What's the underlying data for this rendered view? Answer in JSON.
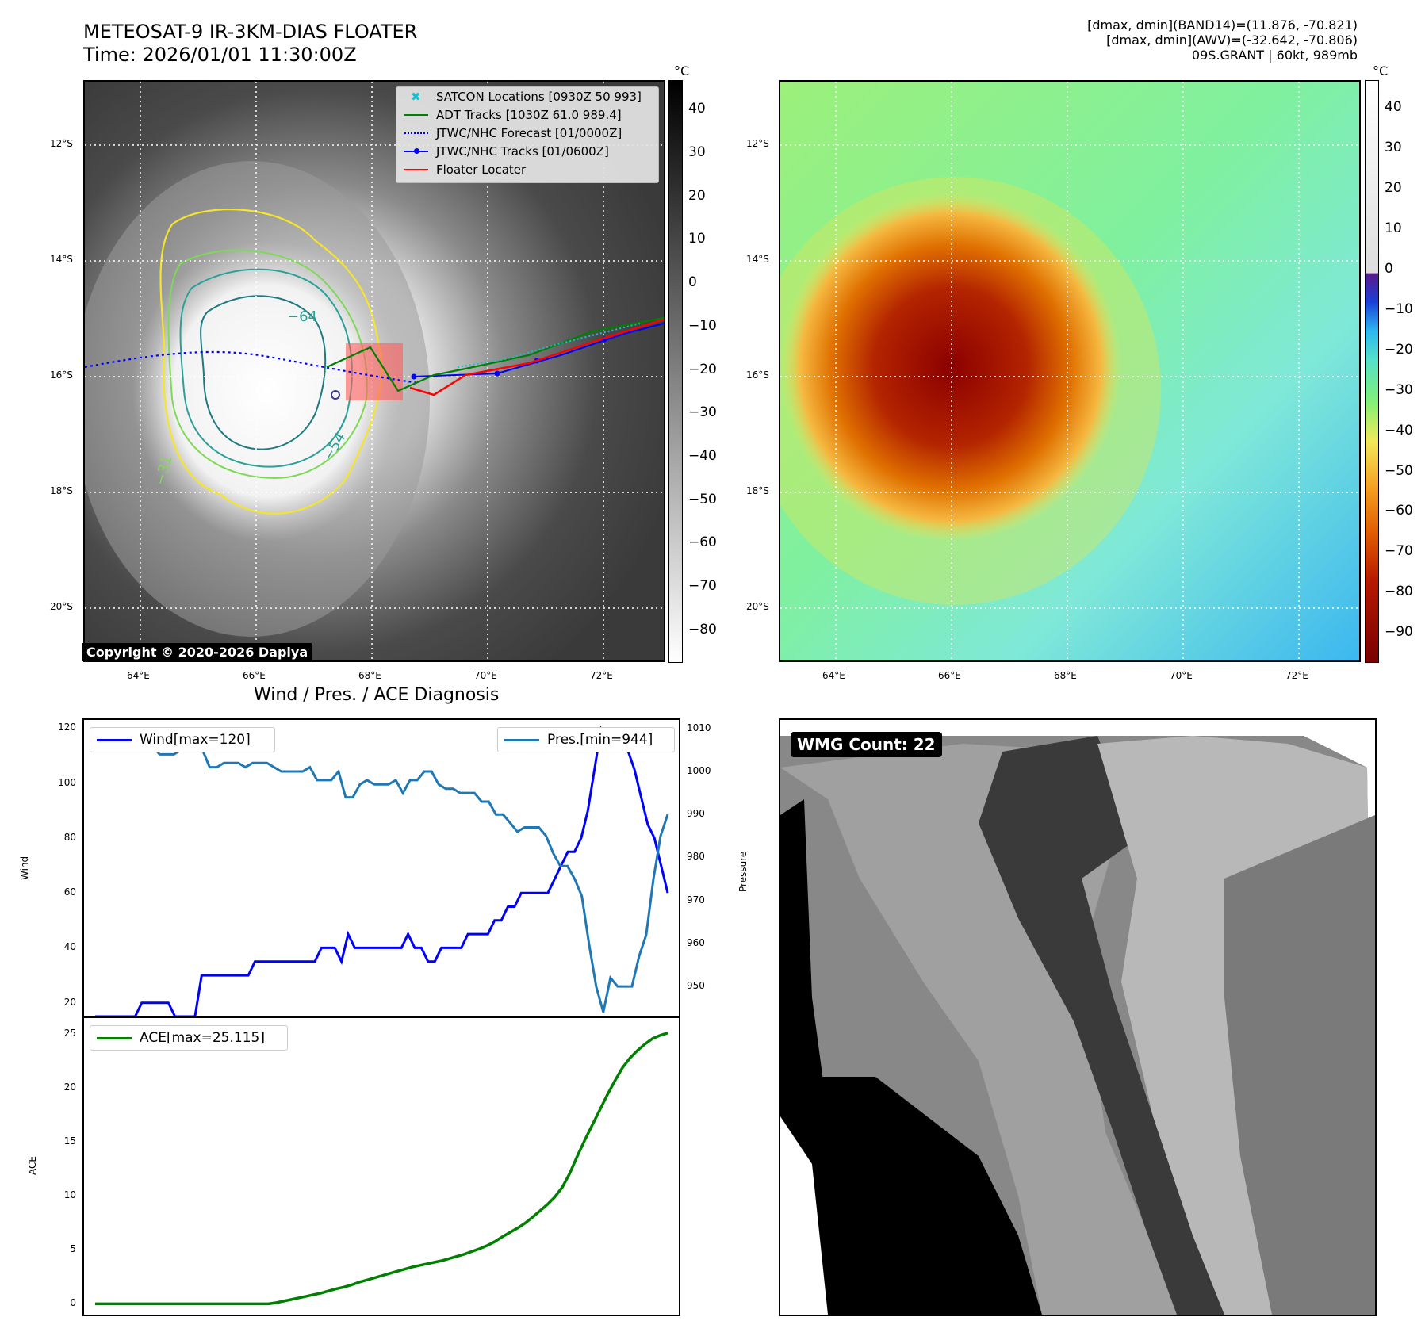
{
  "header": {
    "title_line1": "METEOSAT-9 IR-3KM-DIAS FLOATER",
    "title_line2": "Time: 2026/01/01 11:30:00Z",
    "right_line1": "[dmax, dmin](BAND14)=(11.876, -70.821)",
    "right_line2": "[dmax, dmin](AWV)=(-32.642, -70.806)",
    "right_line3": "09S.GRANT | 60kt, 989mb"
  },
  "map": {
    "lat_ticks": [
      "12°S",
      "14°S",
      "16°S",
      "18°S",
      "20°S"
    ],
    "lon_ticks": [
      "64°E",
      "66°E",
      "68°E",
      "70°E",
      "72°E"
    ],
    "colorbar_unit": "°C",
    "left_colorbar_ticks": [
      "40",
      "30",
      "20",
      "10",
      "0",
      "−10",
      "−20",
      "−30",
      "−40",
      "−50",
      "−60",
      "−70",
      "−80"
    ],
    "right_colorbar_ticks": [
      "40",
      "30",
      "20",
      "10",
      "0",
      "−10",
      "−20",
      "−30",
      "−40",
      "−50",
      "−60",
      "−70",
      "−80",
      "−90"
    ],
    "contour_labels": [
      "−64",
      "−54",
      "−31"
    ],
    "legend": [
      {
        "label": "SATCON Locations [0930Z 50 993]",
        "color": "#17becf"
      },
      {
        "label": "ADT Tracks [1030Z 61.0 989.4]",
        "color": "#008000"
      },
      {
        "label": "JTWC/NHC Forecast [01/0000Z]",
        "color": "#0000ff"
      },
      {
        "label": "JTWC/NHC Tracks [01/0600Z]",
        "color": "#0000ff"
      },
      {
        "label": "Floater Locater",
        "color": "#ff0000"
      }
    ],
    "copyright": "Copyright © 2020-2026 Dapiya"
  },
  "diagnosis": {
    "title": "Wind / Pres. / ACE Diagnosis",
    "wind_legend": "Wind[max=120]",
    "pres_legend": "Pres.[min=944]",
    "ace_legend": "ACE[max=25.115]",
    "wind_axis_label": "Wind",
    "pres_axis_label": "Pressure",
    "ace_axis_label": "ACE",
    "wmg_count": "WMG Count: 22"
  },
  "chart_data": [
    {
      "type": "line",
      "title": "Wind / Pres. / ACE Diagnosis",
      "ylabel": "Wind",
      "ylim": [
        15,
        123
      ],
      "y_ticks": [
        20,
        40,
        60,
        80,
        100,
        120
      ],
      "series": [
        {
          "name": "Wind[max=120]",
          "color": "#0000ff",
          "values": [
            15,
            15,
            15,
            15,
            15,
            15,
            15,
            20,
            20,
            20,
            20,
            20,
            15,
            15,
            15,
            15,
            30,
            30,
            30,
            30,
            30,
            30,
            30,
            30,
            35,
            35,
            35,
            35,
            35,
            35,
            35,
            35,
            35,
            35,
            40,
            40,
            40,
            35,
            45,
            40,
            40,
            40,
            40,
            40,
            40,
            40,
            40,
            45,
            40,
            40,
            35,
            35,
            40,
            40,
            40,
            40,
            45,
            45,
            45,
            45,
            50,
            50,
            55,
            55,
            60,
            60,
            60,
            60,
            60,
            65,
            70,
            75,
            75,
            80,
            90,
            105,
            120,
            118,
            115,
            115,
            112,
            105,
            95,
            85,
            80,
            70,
            60
          ]
        }
      ]
    },
    {
      "type": "line",
      "ylabel": "Pressure",
      "ylim": [
        943,
        1012
      ],
      "y_ticks": [
        950,
        960,
        970,
        980,
        990,
        1000,
        1010
      ],
      "series": [
        {
          "name": "Pres.[min=944]",
          "color": "#1f77b4",
          "values": [
            1008,
            1008,
            1008,
            1008,
            1006,
            1006,
            1006,
            1006,
            1006,
            1004,
            1004,
            1004,
            1005,
            1005,
            1005,
            1005,
            1001,
            1001,
            1002,
            1002,
            1002,
            1001,
            1002,
            1002,
            1002,
            1001,
            1000,
            1000,
            1000,
            1000,
            1001,
            998,
            998,
            998,
            1000,
            994,
            994,
            997,
            998,
            997,
            997,
            997,
            998,
            995,
            998,
            998,
            1000,
            1000,
            997,
            996,
            996,
            995,
            995,
            995,
            993,
            993,
            990,
            990,
            988,
            986,
            987,
            987,
            987,
            985,
            981,
            978,
            978,
            975,
            971,
            960,
            950,
            944,
            952,
            950,
            950,
            950,
            957,
            962,
            975,
            985,
            990
          ]
        }
      ]
    },
    {
      "type": "area",
      "ylabel": "ACE",
      "ylim": [
        -1,
        26.5
      ],
      "y_ticks": [
        0,
        5,
        10,
        15,
        20,
        25
      ],
      "series": [
        {
          "name": "ACE[max=25.115]",
          "color": "#008000",
          "values": [
            0,
            0,
            0,
            0,
            0,
            0,
            0,
            0,
            0,
            0,
            0,
            0,
            0,
            0,
            0,
            0,
            0,
            0,
            0,
            0,
            0,
            0,
            0,
            0,
            0.1,
            0.25,
            0.4,
            0.55,
            0.7,
            0.85,
            1.0,
            1.2,
            1.4,
            1.55,
            1.75,
            2.0,
            2.2,
            2.4,
            2.6,
            2.8,
            3.0,
            3.2,
            3.4,
            3.55,
            3.7,
            3.85,
            4.0,
            4.2,
            4.4,
            4.6,
            4.85,
            5.1,
            5.4,
            5.75,
            6.2,
            6.6,
            7.0,
            7.45,
            8.0,
            8.6,
            9.2,
            9.9,
            10.8,
            12.1,
            13.7,
            15.2,
            16.6,
            18.0,
            19.4,
            20.7,
            21.9,
            22.8,
            23.5,
            24.1,
            24.6,
            24.9,
            25.115
          ]
        }
      ]
    }
  ]
}
